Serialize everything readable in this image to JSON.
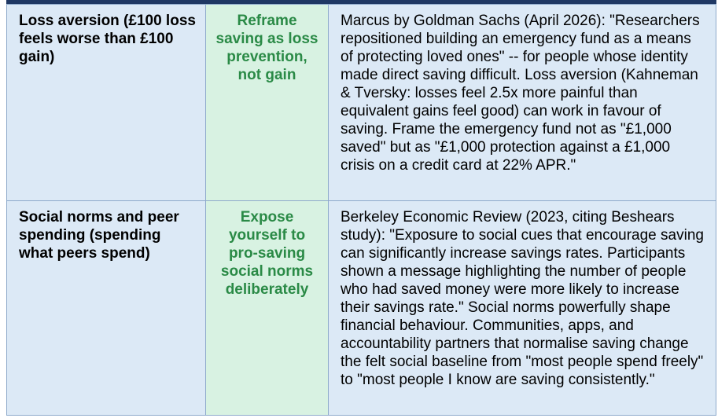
{
  "table": {
    "rows": [
      [
        "Loss aversion (£100 loss feels worse than £100 gain)",
        "Reframe saving as loss prevention, not gain",
        "Marcus by Goldman Sachs (April 2026): \"Researchers repositioned building an emergency fund as a means of protecting loved ones\" -- for people whose identity made direct saving difficult. Loss aversion (Kahneman & Tversky: losses feel 2.5x more painful than equivalent gains feel good) can work in favour of saving. Frame the emergency fund not as \"£1,000 saved\" but as \"£1,000 protection against a £1,000 crisis on a credit card at 22% APR.\""
      ],
      [
        "Social norms and peer spending (spending what peers spend)",
        "Expose yourself to pro-saving social norms deliberately",
        "Berkeley Economic Review (2023, citing Beshears study): \"Exposure to social cues that encourage saving can significantly increase savings rates. Participants shown a message highlighting the number of people who had saved money were more likely to increase their savings rate.\" Social norms powerfully shape financial behaviour. Communities, apps, and accountability partners that normalise saving change the felt social baseline from \"most people spend freely\" to \"most people I know are saving consistently.\""
      ]
    ]
  }
}
